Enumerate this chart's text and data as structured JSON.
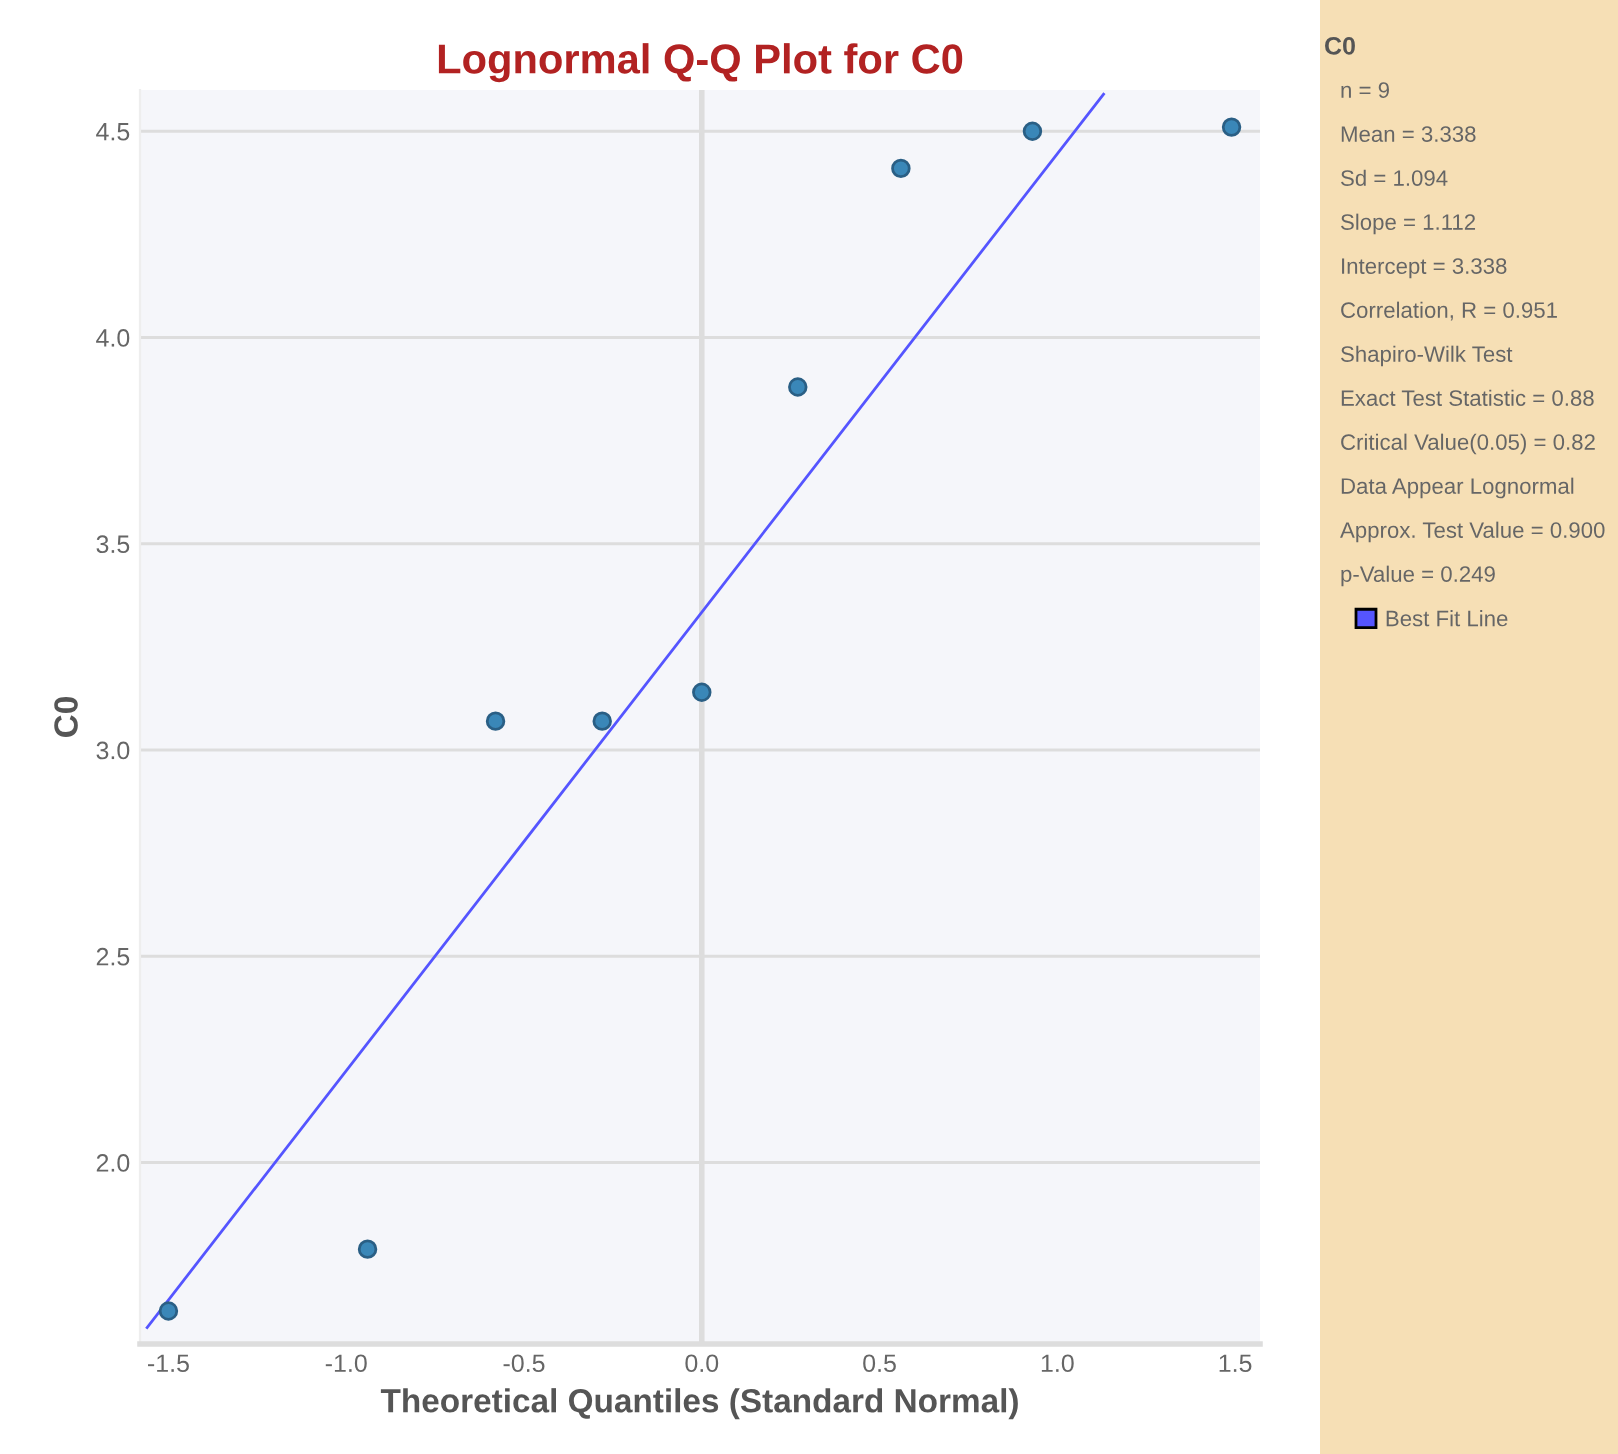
{
  "chart_data": {
    "type": "scatter",
    "title": "Lognormal Q-Q Plot for C0",
    "xlabel": "Theoretical Quantiles (Standard Normal)",
    "ylabel": "C0",
    "series": [
      {
        "color": "#3a87b8",
        "x": [
          -1.5,
          -0.94,
          -0.58,
          -0.28,
          0,
          0.27,
          0.56,
          0.93,
          1.49
        ],
        "values": [
          1.64,
          1.79,
          3.07,
          3.07,
          3.14,
          3.88,
          4.41,
          4.5,
          4.51
        ],
        "marker": "circle"
      },
      {
        "type": "line",
        "name": "Best Fit Line",
        "color": "#5555ff",
        "x": [
          -1.56,
          1.13
        ],
        "values": [
          1.6,
          4.59
        ],
        "marker": "none",
        "line_style": "solid"
      }
    ],
    "xlim": [
      -1.58,
      1.57
    ],
    "ylim": [
      1.56,
      4.6
    ],
    "xticks": [
      {
        "value": -1.5,
        "label": "-1.5"
      },
      {
        "value": -1.0,
        "label": "-1.0"
      },
      {
        "value": -0.5,
        "label": "-0.5"
      },
      {
        "value": 0,
        "label": "0.0"
      },
      0.5,
      {
        "value": 1.0,
        "label": "1.0"
      },
      1.5
    ],
    "yticks": [
      {
        "value": 2.0,
        "label": "2.0"
      },
      2.5,
      {
        "value": 3.0,
        "label": "3.0"
      },
      3.5,
      {
        "value": 4.0,
        "label": "4.0"
      },
      4.5
    ],
    "grid": "y",
    "legend": "right",
    "ref_lines": [
      {
        "axis": "x",
        "value": 0,
        "color": "#dddddd"
      }
    ],
    "annotations": [
      "C0",
      "n = 9",
      "Mean = 3.338",
      "Sd = 1.094",
      "Slope = 1.112",
      "Intercept = 3.338",
      "Correlation, R = 0.951",
      "Shapiro-Wilk Test",
      "Exact Test Statistic = 0.88",
      "Critical Value(0.05) = 0.82",
      "Data Appear Lognormal",
      "Approx. Test Value = 0.900",
      "p-Value = 0.249"
    ]
  }
}
